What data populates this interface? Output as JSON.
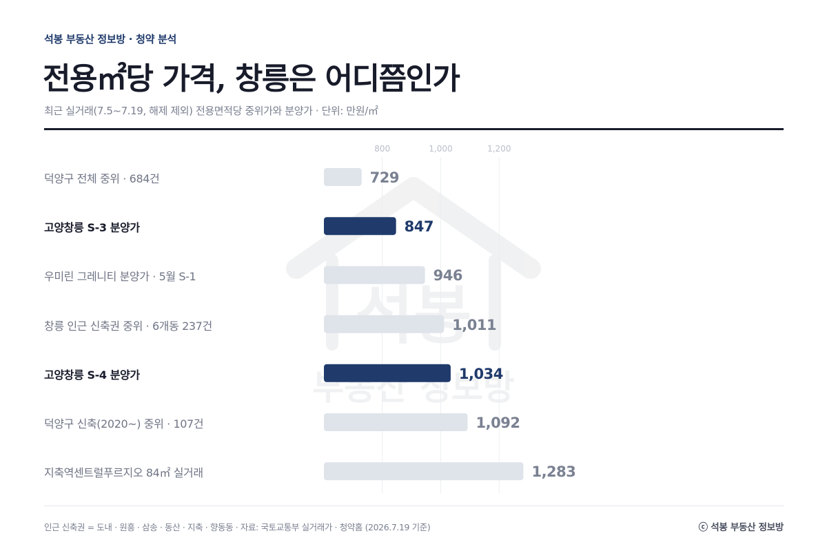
{
  "header": {
    "kicker": "석봉 부동산 정보방 · 청약 분석",
    "title": "전용㎡당 가격, 창릉은 어디쯤인가",
    "subtitle": "최근 실거래(7.5~7.19, 해제 제외) 전용면적당 중위가와 분양가 · 단위: 만원/㎡"
  },
  "watermark": {
    "text_main": "석봉",
    "text_sub": "부동산 정보방"
  },
  "chart_data": {
    "type": "bar",
    "orientation": "horizontal",
    "unit": "만원/㎡",
    "xticks": [
      800,
      1000,
      1200
    ],
    "xtick_labels": [
      "800",
      "1,000",
      "1,200"
    ],
    "categories": [
      "덕양구 전체 중위 · 684건",
      "고양창릉 S-3 분양가",
      "우미린 그레니티 분양가 · 5월 S-1",
      "창릉 인근 신축권 중위 · 6개동 237건",
      "고양창릉 S-4 분양가",
      "덕양구 신축(2020~) 중위 · 107건",
      "지축역센트럴푸르지오 84㎡ 실거래"
    ],
    "values": [
      729,
      847,
      946,
      1011,
      1034,
      1092,
      1283
    ],
    "value_labels": [
      "729",
      "847",
      "946",
      "1,011",
      "1,034",
      "1,092",
      "1,283"
    ],
    "highlighted": [
      false,
      true,
      false,
      false,
      true,
      false,
      false
    ],
    "colors": {
      "highlight": "#1f3a6b",
      "default": "#dfe3ea",
      "grid": "#eceef2",
      "tick": "#b8bdc8"
    },
    "legend": "none",
    "grid": true
  },
  "footer": {
    "note": "인근 신축권 = 도내 · 원흥 · 삼송 · 동산 · 지축 · 향동동  ·  자료: 국토교통부 실거래가 · 청약홈 (2026.7.19 기준)",
    "brand": "ⓒ 석봉 부동산 정보방"
  }
}
